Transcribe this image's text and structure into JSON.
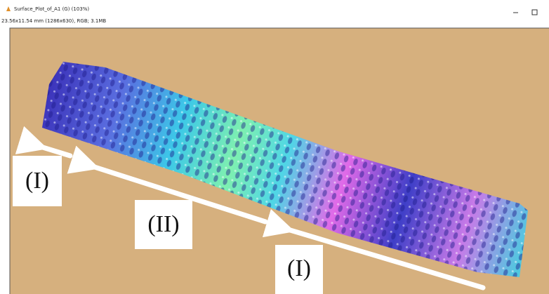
{
  "window": {
    "title": "Surface_Plot_of_A1 (G) (103%)",
    "info": "23.56x11.54 mm (1286x630), RGB; 3.1MB"
  },
  "labels": [
    "(I)",
    "(II)",
    "(I)"
  ]
}
